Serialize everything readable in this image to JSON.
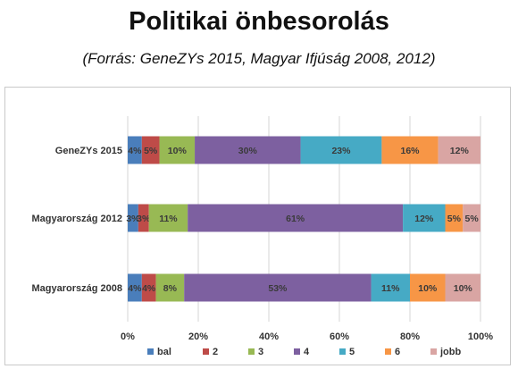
{
  "title": "Politikai önbesorolás",
  "subtitle": "(Forrás: GeneZYs 2015, Magyar Ifjúság 2008, 2012)",
  "chart_data": {
    "type": "bar",
    "orientation": "horizontal",
    "stacked": "percent",
    "categories": [
      "GeneZYs 2015",
      "Magyarország 2012",
      "Magyarország 2008"
    ],
    "series": [
      {
        "name": "bal",
        "color": "#4a7ebb",
        "values": [
          4,
          3,
          4
        ]
      },
      {
        "name": "2",
        "color": "#be4b48",
        "values": [
          5,
          3,
          4
        ]
      },
      {
        "name": "3",
        "color": "#98b954",
        "values": [
          10,
          11,
          8
        ]
      },
      {
        "name": "4",
        "color": "#7d60a0",
        "values": [
          30,
          61,
          53
        ]
      },
      {
        "name": "5",
        "color": "#46aac5",
        "values": [
          23,
          12,
          11
        ]
      },
      {
        "name": "6",
        "color": "#f79646",
        "values": [
          16,
          5,
          10
        ]
      },
      {
        "name": "jobb",
        "color": "#d9a5a3",
        "values": [
          12,
          5,
          10
        ]
      }
    ],
    "data_labels": [
      [
        "4%",
        "5%",
        "10%",
        "30%",
        "23%",
        "16%",
        "12%"
      ],
      [
        "3%",
        "3%",
        "11%",
        "61%",
        "12%",
        "5%",
        "5%"
      ],
      [
        "4%",
        "4%",
        "8%",
        "53%",
        "11%",
        "10%",
        "10%"
      ]
    ],
    "x_ticks": [
      "0%",
      "20%",
      "40%",
      "60%",
      "80%",
      "100%"
    ],
    "xlim": [
      0,
      100
    ],
    "grid": true,
    "legend_position": "bottom"
  }
}
